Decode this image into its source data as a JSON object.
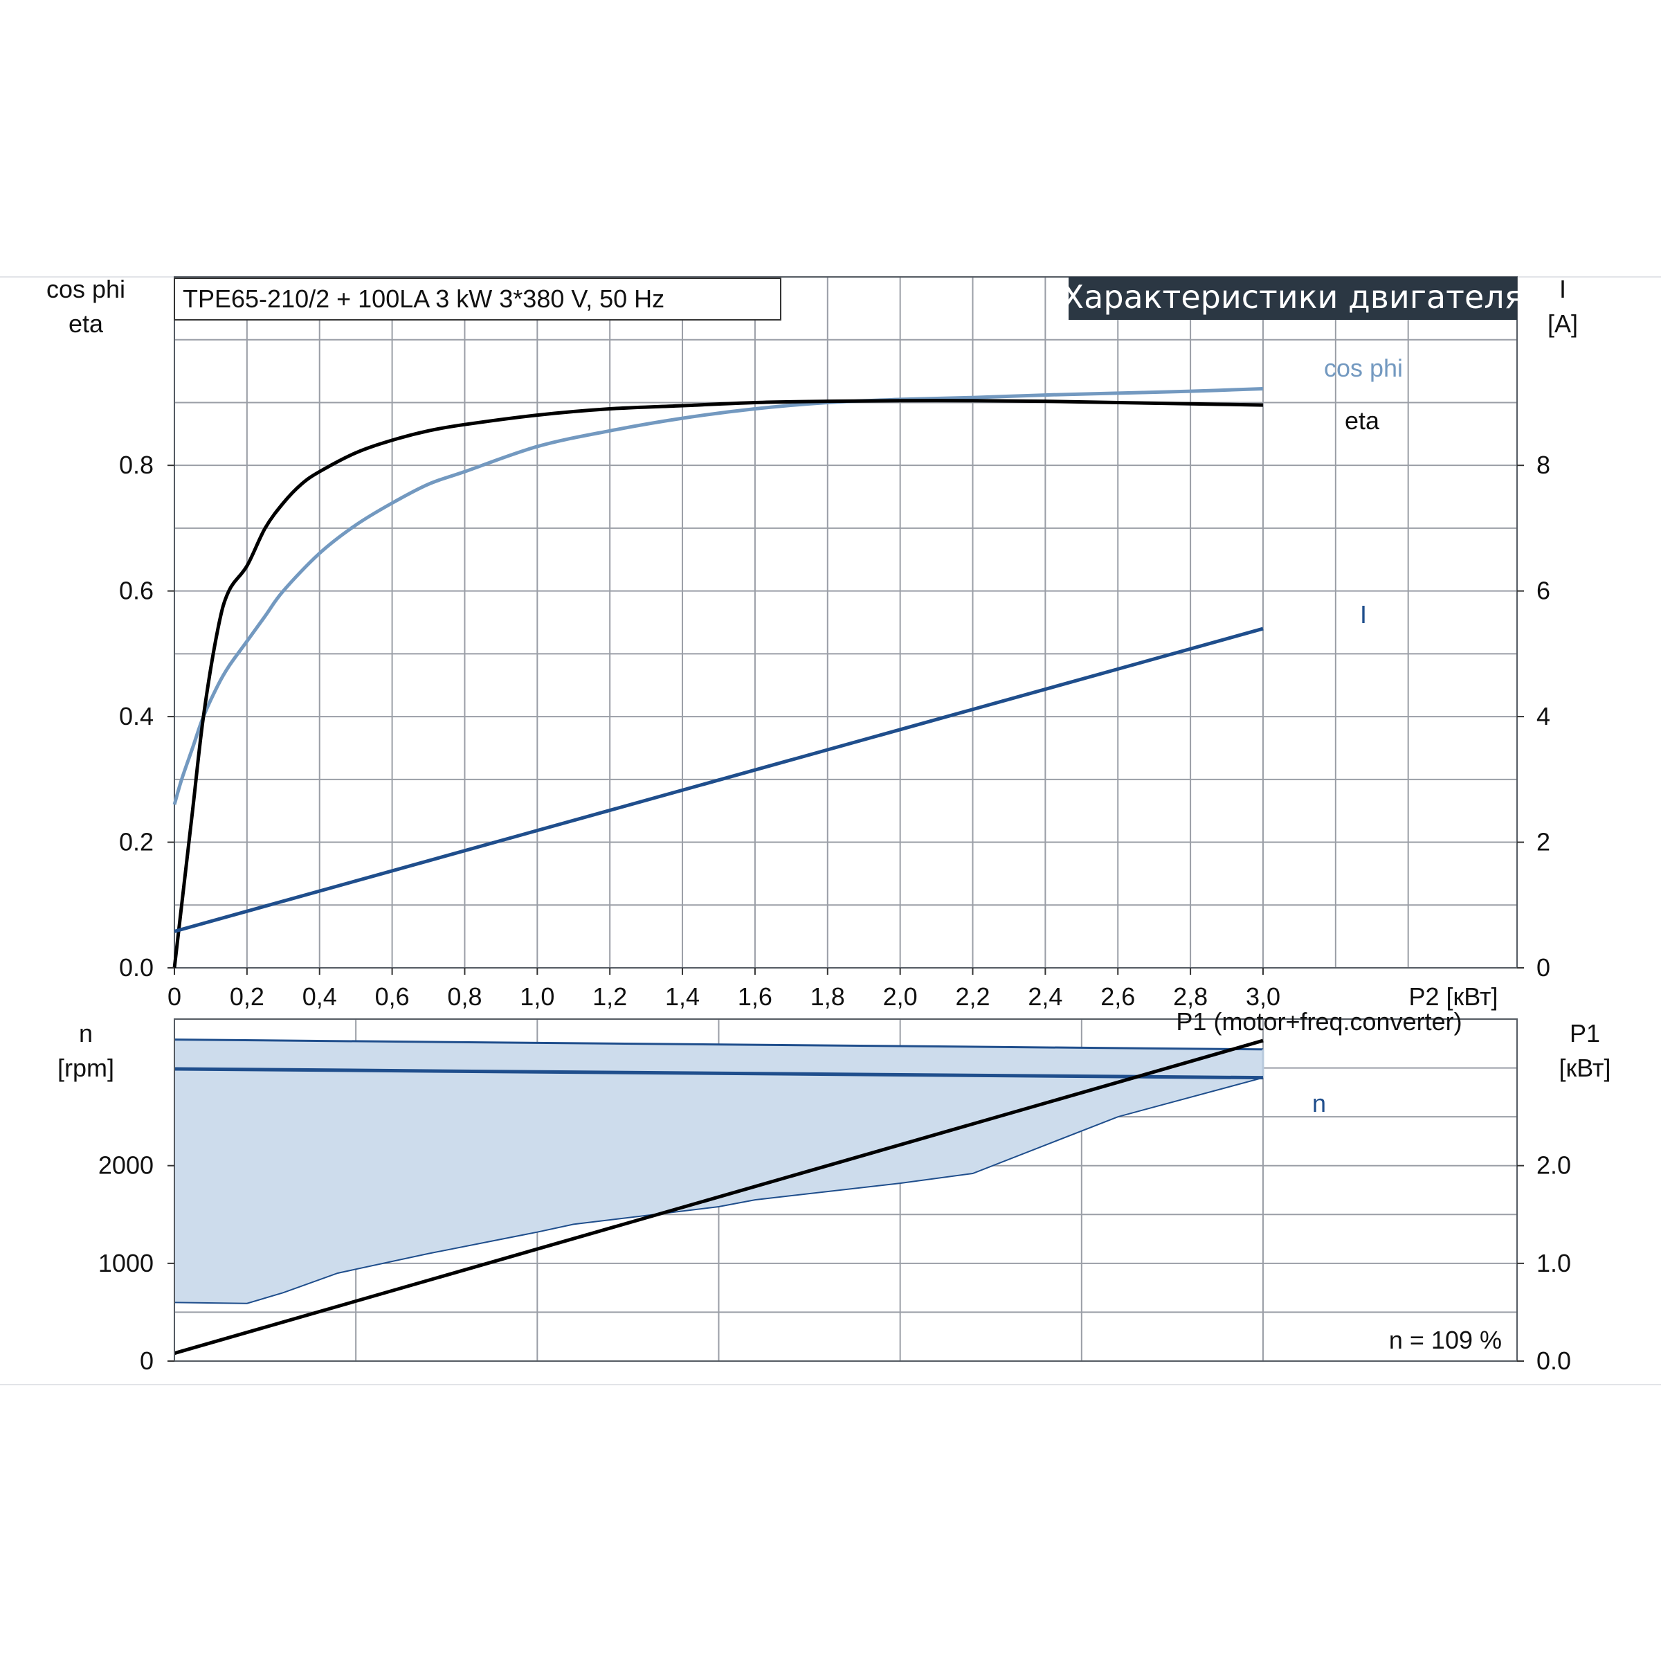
{
  "chart_data": [
    {
      "type": "line",
      "title": "Характеристики двигателя",
      "model_label": "TPE65-210/2 + 100LA   3 kW   3*380 V, 50 Hz",
      "left_axis_label_line1": "cos phi",
      "left_axis_label_line2": "eta",
      "right_axis_label_line1": "I",
      "right_axis_label_line2": "[A]",
      "x_label": "P2 [кВт]",
      "xlim": [
        0,
        3.7
      ],
      "ylim_left": [
        0,
        1.1
      ],
      "ylim_right": [
        0,
        11
      ],
      "x_ticks": [
        "0",
        "0,2",
        "0,4",
        "0,6",
        "0,8",
        "1,0",
        "1,2",
        "1,4",
        "1,6",
        "1,8",
        "2,0",
        "2,2",
        "2,4",
        "2,6",
        "2,8",
        "3,0"
      ],
      "y_ticks_left": [
        "0.0",
        "0.2",
        "0.4",
        "0.6",
        "0.8"
      ],
      "y_ticks_right": [
        "0",
        "2",
        "4",
        "6",
        "8"
      ],
      "grid": true,
      "colors": {
        "eta": "#000000",
        "cos_phi": "#7399c0",
        "current": "#1f4e8c"
      },
      "series": [
        {
          "name": "eta",
          "axis": "left",
          "x": [
            0,
            0.02,
            0.05,
            0.08,
            0.12,
            0.15,
            0.2,
            0.25,
            0.3,
            0.35,
            0.4,
            0.5,
            0.6,
            0.7,
            0.8,
            1.0,
            1.2,
            1.4,
            1.6,
            1.8,
            2.0,
            2.2,
            2.4,
            2.6,
            2.8,
            3.0
          ],
          "y": [
            0.0,
            0.1,
            0.25,
            0.4,
            0.54,
            0.6,
            0.64,
            0.7,
            0.74,
            0.77,
            0.79,
            0.82,
            0.84,
            0.855,
            0.865,
            0.88,
            0.89,
            0.895,
            0.9,
            0.902,
            0.903,
            0.903,
            0.902,
            0.9,
            0.898,
            0.896
          ]
        },
        {
          "name": "cos phi",
          "axis": "left",
          "x": [
            0,
            0.02,
            0.05,
            0.08,
            0.12,
            0.15,
            0.2,
            0.25,
            0.3,
            0.4,
            0.5,
            0.6,
            0.7,
            0.8,
            1.0,
            1.2,
            1.4,
            1.6,
            1.8,
            2.0,
            2.2,
            2.4,
            2.6,
            2.8,
            3.0
          ],
          "y": [
            0.26,
            0.3,
            0.35,
            0.4,
            0.45,
            0.48,
            0.52,
            0.56,
            0.6,
            0.66,
            0.705,
            0.74,
            0.77,
            0.79,
            0.83,
            0.855,
            0.875,
            0.89,
            0.9,
            0.905,
            0.908,
            0.912,
            0.915,
            0.918,
            0.922
          ]
        },
        {
          "name": "I",
          "axis": "right",
          "x": [
            0,
            3.0
          ],
          "y": [
            0.58,
            5.4
          ]
        }
      ]
    },
    {
      "type": "area",
      "left_axis_label_line1": "n",
      "left_axis_label_line2": "[rpm]",
      "right_axis_label_line1": "P1",
      "right_axis_label_line2": "[кВт]",
      "p1_label": "P1 (motor+freq.converter)",
      "n_label": "n",
      "note": "n = 109 %",
      "xlim": [
        0,
        3.7
      ],
      "ylim_left": [
        0,
        3500
      ],
      "ylim_right": [
        0,
        3.5
      ],
      "y_ticks_left": [
        "0",
        "1000",
        "2000"
      ],
      "y_ticks_right": [
        "0.0",
        "1.0",
        "2.0"
      ],
      "grid": true,
      "colors": {
        "band_fill": "#cddcec",
        "band_edge": "#1f4e8c",
        "speed": "#1f4e8c",
        "power": "#000000"
      },
      "series": [
        {
          "name": "n",
          "axis": "left",
          "x": [
            0,
            3.0
          ],
          "y": [
            2990,
            2900
          ]
        },
        {
          "name": "P1 (motor+freq.converter)",
          "axis": "right",
          "x": [
            0,
            3.0
          ],
          "y": [
            0.08,
            3.28
          ]
        },
        {
          "name": "n max",
          "axis": "left",
          "x": [
            0,
            3.0
          ],
          "y": [
            3290,
            3190
          ]
        },
        {
          "name": "n min",
          "axis": "left",
          "x": [
            0,
            0.2,
            0.3,
            0.45,
            0.7,
            1.0,
            1.1,
            1.5,
            1.6,
            2.0,
            2.2,
            2.6,
            3.0
          ],
          "y": [
            600,
            590,
            700,
            900,
            1100,
            1320,
            1400,
            1580,
            1650,
            1820,
            1920,
            2500,
            2900
          ]
        }
      ]
    }
  ]
}
